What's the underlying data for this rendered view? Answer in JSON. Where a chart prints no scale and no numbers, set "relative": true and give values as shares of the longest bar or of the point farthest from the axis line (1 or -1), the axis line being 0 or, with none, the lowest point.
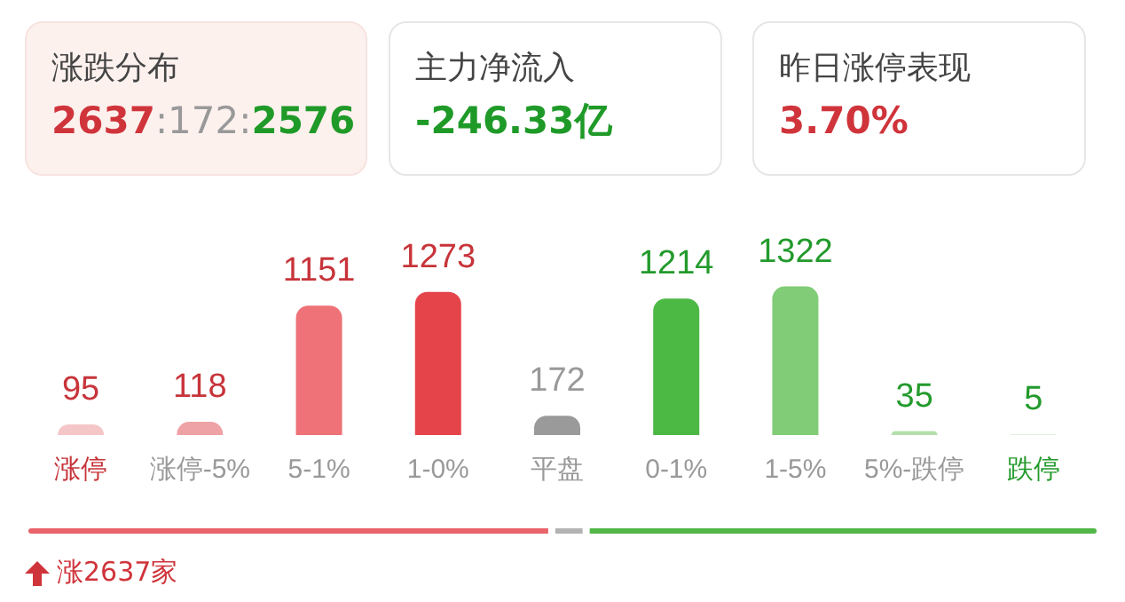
{
  "chart_data": [
    {
      "type": "other",
      "annotations": [
        "涨跌分布",
        "2637:172:2576",
        "主力净流入",
        "-246.33亿",
        "昨日涨停表现",
        "3.70%"
      ]
    },
    {
      "type": "bar",
      "categories": [
        "涨停",
        "涨停-5%",
        "5-1%",
        "1-0%",
        "平盘",
        "0-1%",
        "1-5%",
        "5%-跌停",
        "跌停"
      ],
      "values": [
        95,
        118,
        1151,
        1273,
        172,
        1214,
        1322,
        35,
        5
      ],
      "colors": [
        "#f5c6c8",
        "#eea2a5",
        "#ee7277",
        "#e5444b",
        "#9a9a9a",
        "#4cb944",
        "#80cc77",
        "#b4dfad",
        "#d5edd1"
      ],
      "data_labels": true,
      "tick_labels": "x"
    },
    {
      "type": "bar",
      "orientation": "horizontal",
      "stacked": true,
      "relative": true,
      "categories": [
        null
      ],
      "annotations": [
        "涨2637家"
      ],
      "tick_labels": false,
      "series": [
        {
          "color": "#e9636a",
          "values": [
            0.49
          ]
        },
        {
          "color": "#b3b3b3",
          "values": [
            0.032
          ]
        },
        {
          "color": "#52b748",
          "values": [
            0.478
          ]
        }
      ]
    }
  ]
}
